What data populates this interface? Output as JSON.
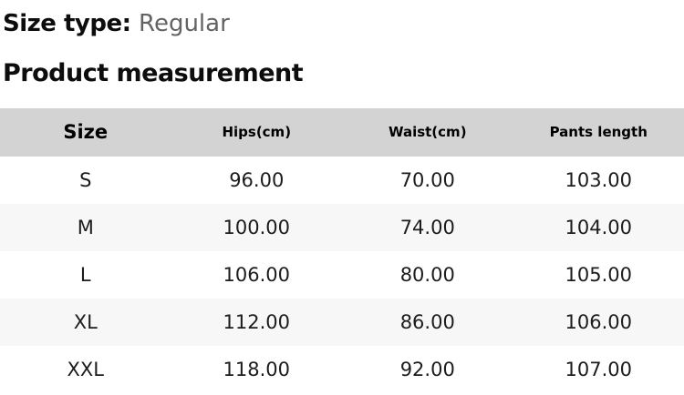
{
  "header": {
    "size_type_label": "Size type:",
    "size_type_value": "Regular",
    "section_title": "Product measurement"
  },
  "table": {
    "columns": [
      "Size",
      "Hips(cm)",
      "Waist(cm)",
      "Pants length"
    ],
    "rows": [
      {
        "size": "S",
        "hips": "96.00",
        "waist": "70.00",
        "pants_length": "103.00"
      },
      {
        "size": "M",
        "hips": "100.00",
        "waist": "74.00",
        "pants_length": "104.00"
      },
      {
        "size": "L",
        "hips": "106.00",
        "waist": "80.00",
        "pants_length": "105.00"
      },
      {
        "size": "XL",
        "hips": "112.00",
        "waist": "86.00",
        "pants_length": "106.00"
      },
      {
        "size": "XXL",
        "hips": "118.00",
        "waist": "92.00",
        "pants_length": "107.00"
      }
    ]
  },
  "colors": {
    "header_row_bg": "#d3d3d3",
    "alt_row_bg": "#f7f7f7",
    "muted_text": "#636363",
    "body_text": "#1c1c1c"
  }
}
